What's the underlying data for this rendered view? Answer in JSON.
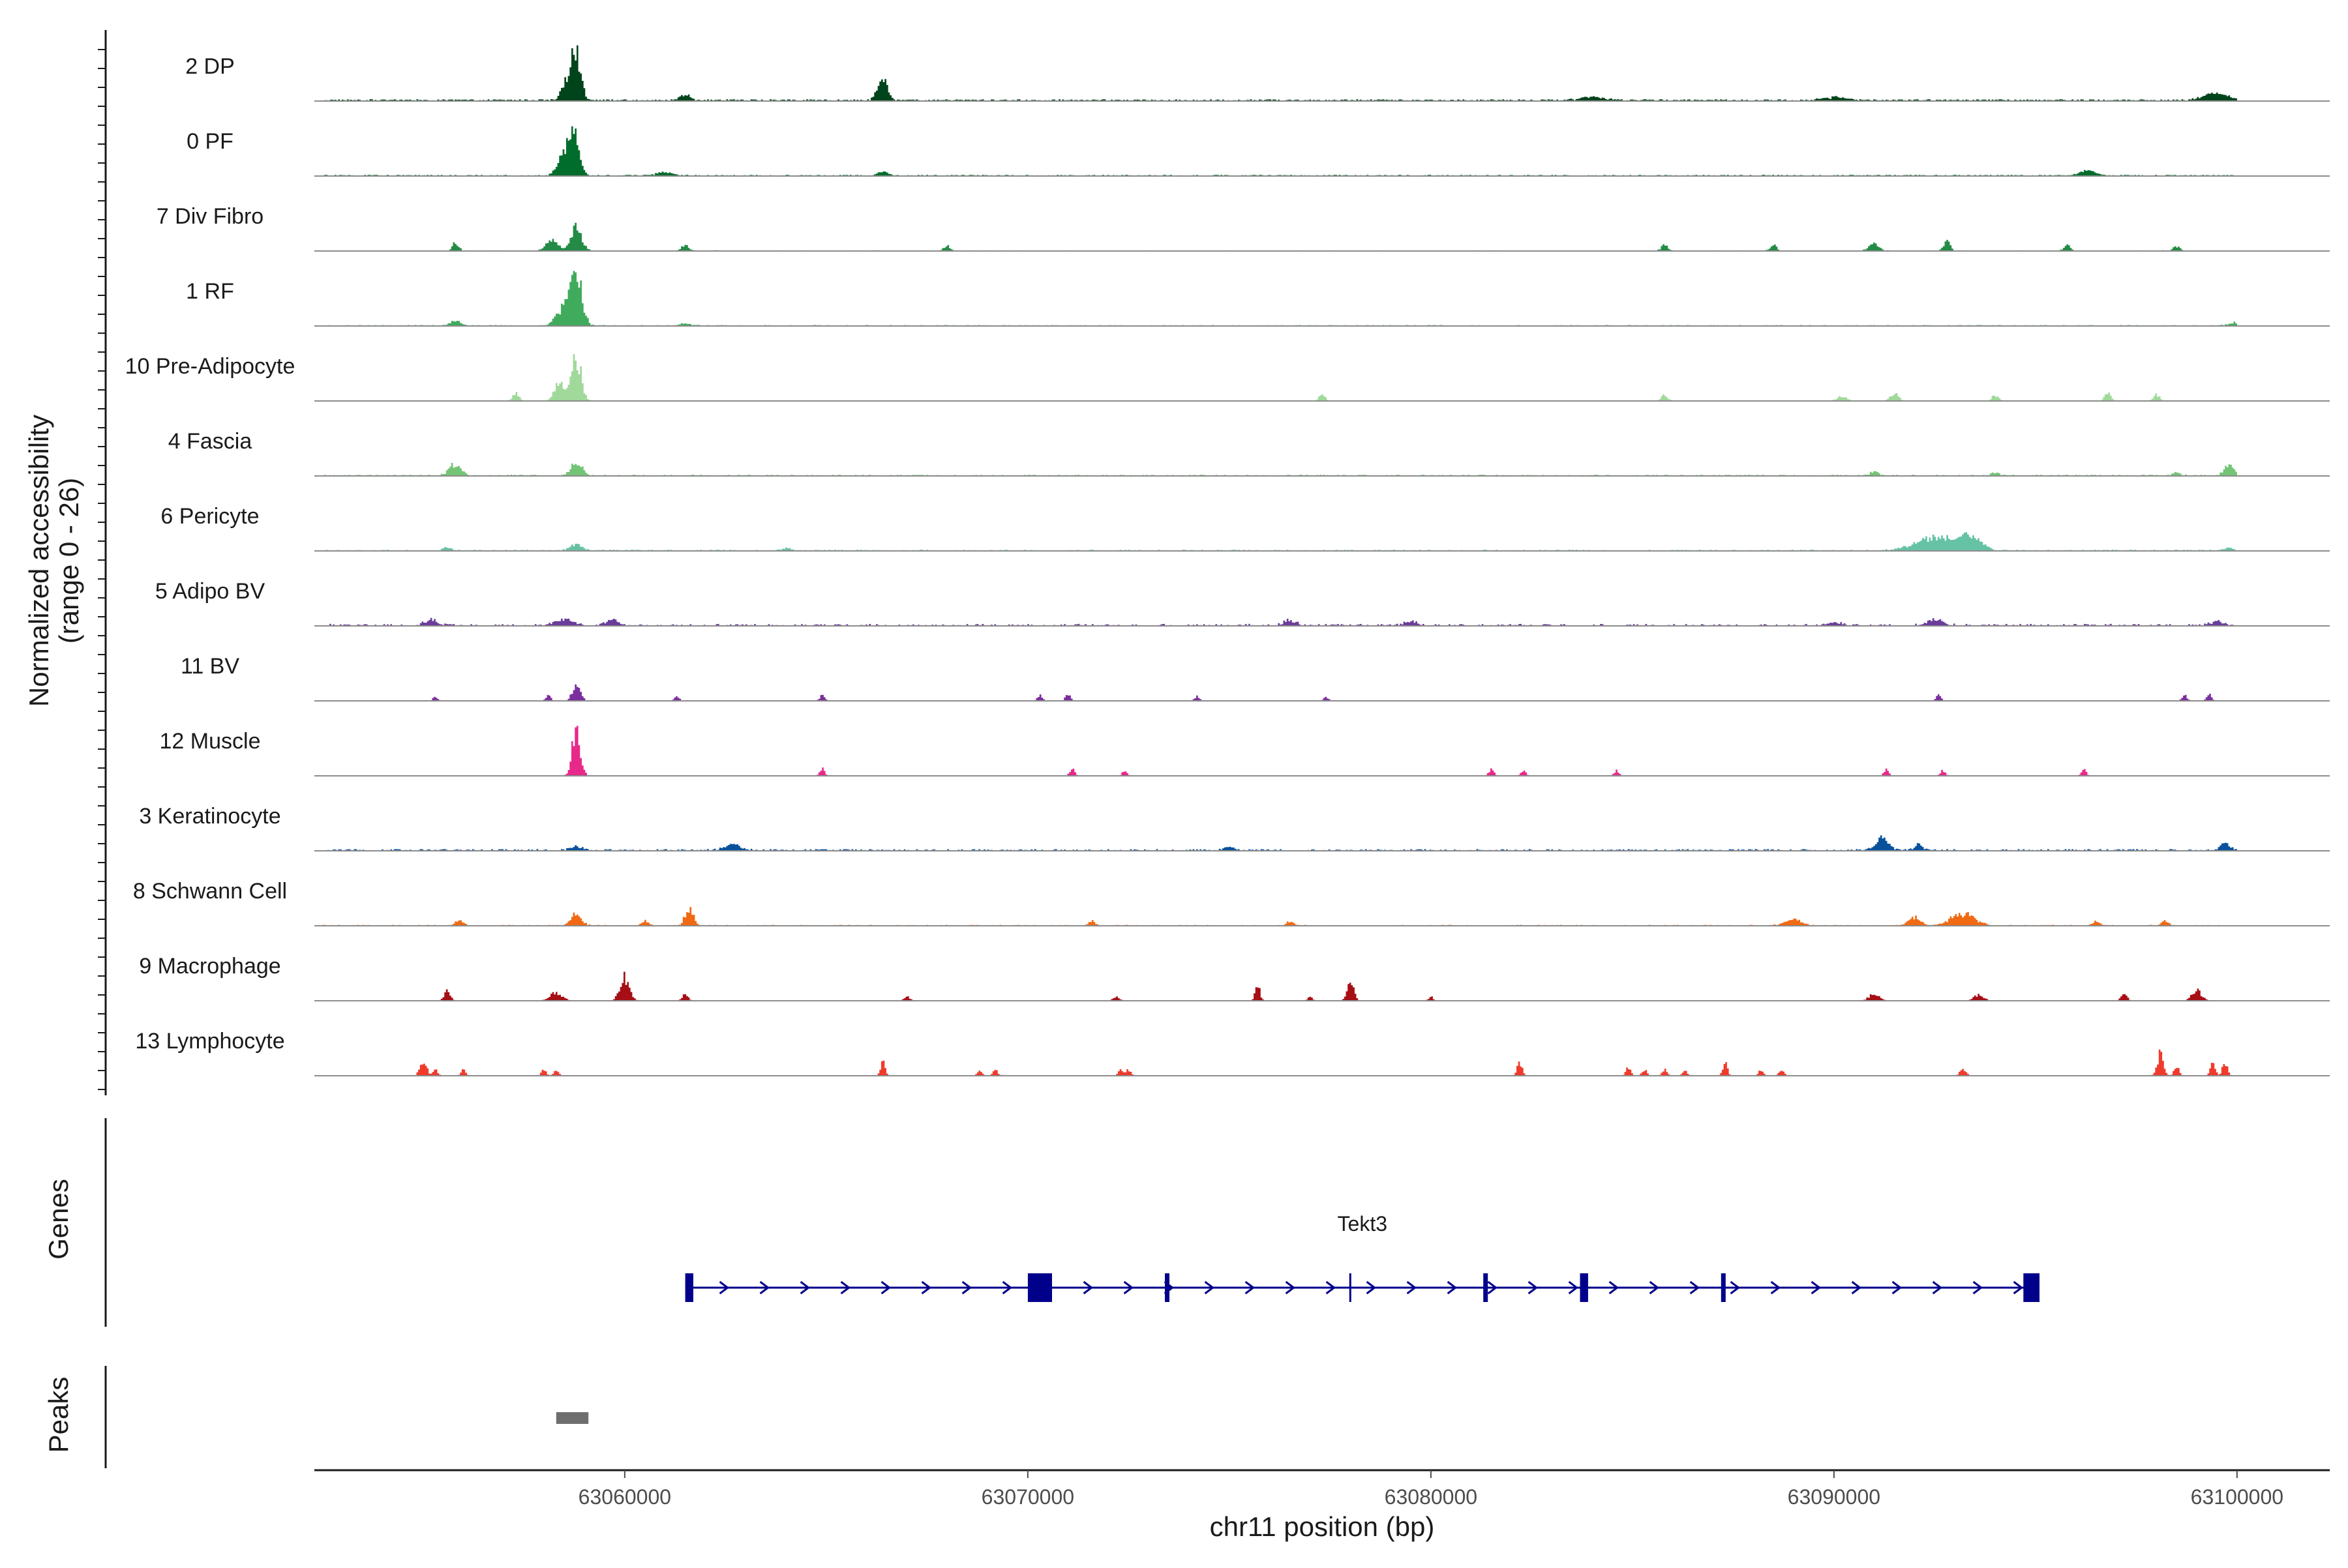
{
  "chart_data": {
    "type": "area",
    "y_axis_title_line1": "Normalized accessibility",
    "y_axis_title_line2": "(range 0 - 26)",
    "ylim": [
      0,
      26
    ],
    "x_axis_title": "chr11 position (bp)",
    "xlim": [
      63052300,
      63102300
    ],
    "x_ticks": [
      63060000,
      63070000,
      63080000,
      63090000,
      63100000
    ],
    "x_tick_labels": [
      "63060000",
      "63070000",
      "63080000",
      "63090000",
      "63100000"
    ],
    "region": [
      63052500,
      63100000
    ],
    "genes_panel_title": "Genes",
    "peaks_panel_title": "Peaks",
    "series": [
      {
        "name": "2 DP",
        "color": "#00441b",
        "baseline": 0.35,
        "density": 0.9,
        "peaks": [
          [
            63058800,
            20,
            120
          ],
          [
            63058600,
            9,
            150
          ],
          [
            63061500,
            3,
            120
          ],
          [
            63066400,
            10,
            120
          ],
          [
            63099500,
            3.5,
            300
          ],
          [
            63090000,
            1.5,
            300
          ],
          [
            63084000,
            1.5,
            300
          ]
        ]
      },
      {
        "name": "0 PF",
        "color": "#006d2c",
        "baseline": 0.25,
        "density": 0.8,
        "peaks": [
          [
            63058750,
            24,
            120
          ],
          [
            63058500,
            10,
            150
          ],
          [
            63066400,
            2,
            120
          ],
          [
            63096300,
            2.5,
            200
          ],
          [
            63061000,
            1.5,
            200
          ]
        ]
      },
      {
        "name": "7 Div Fibro",
        "color": "#238b45",
        "baseline": 0.15,
        "density": 0.35,
        "peaks": [
          [
            63058800,
            13,
            130
          ],
          [
            63058200,
            5,
            150
          ],
          [
            63055800,
            4,
            80
          ],
          [
            63061500,
            3,
            80
          ],
          [
            63068000,
            2.5,
            80
          ],
          [
            63085800,
            3,
            80
          ],
          [
            63091000,
            4,
            120
          ],
          [
            63092800,
            5,
            80
          ],
          [
            63095800,
            3,
            80
          ],
          [
            63098500,
            2.5,
            80
          ],
          [
            63088500,
            3,
            80
          ]
        ]
      },
      {
        "name": "1 RF",
        "color": "#41ab5d",
        "baseline": 0.2,
        "density": 0.6,
        "peaks": [
          [
            63058800,
            24,
            140
          ],
          [
            63058500,
            9,
            180
          ],
          [
            63055800,
            2,
            150
          ],
          [
            63061500,
            1.5,
            120
          ],
          [
            63100000,
            1.5,
            200
          ]
        ]
      },
      {
        "name": "10 Pre-Adipocyte",
        "color": "#a1d99b",
        "baseline": 0,
        "density": 0.25,
        "peaks": [
          [
            63058800,
            22,
            120
          ],
          [
            63058400,
            9,
            140
          ],
          [
            63057300,
            4,
            80
          ],
          [
            63077300,
            3,
            80
          ],
          [
            63085800,
            3,
            80
          ],
          [
            63091500,
            4,
            100
          ],
          [
            63096800,
            4,
            80
          ],
          [
            63090200,
            2.5,
            120
          ],
          [
            63094000,
            3,
            80
          ],
          [
            63098000,
            3,
            80
          ]
        ]
      },
      {
        "name": "4 Fascia",
        "color": "#74c476",
        "baseline": 0.25,
        "density": 0.6,
        "peaks": [
          [
            63058800,
            7,
            130
          ],
          [
            63055800,
            6,
            150
          ],
          [
            63099800,
            5,
            120
          ],
          [
            63091000,
            2,
            100
          ],
          [
            63094000,
            1.5,
            100
          ],
          [
            63098500,
            1.5,
            100
          ]
        ]
      },
      {
        "name": "6 Pericyte",
        "color": "#66c2a4",
        "baseline": 0.25,
        "density": 0.5,
        "peaks": [
          [
            63092600,
            7,
            500
          ],
          [
            63093400,
            6,
            250
          ],
          [
            63058800,
            3,
            150
          ],
          [
            63055600,
            2,
            100
          ],
          [
            63064000,
            1.5,
            100
          ],
          [
            63099800,
            1.5,
            100
          ]
        ]
      },
      {
        "name": "5 Adipo BV",
        "color": "#6a3d9a",
        "baseline": 0.4,
        "density": 0.4,
        "peaks": [
          [
            63055200,
            3,
            150
          ],
          [
            63058500,
            3,
            200
          ],
          [
            63059700,
            3,
            150
          ],
          [
            63076500,
            2.5,
            150
          ],
          [
            63079500,
            2.5,
            150
          ],
          [
            63092500,
            3,
            200
          ],
          [
            63090000,
            2,
            150
          ],
          [
            63099500,
            2,
            150
          ]
        ]
      },
      {
        "name": "11 BV",
        "color": "#7b2f9e",
        "baseline": 0,
        "density": 0.12,
        "peaks": [
          [
            63058800,
            8,
            100
          ],
          [
            63058100,
            3,
            60
          ],
          [
            63055300,
            2,
            60
          ],
          [
            63061300,
            2.5,
            60
          ],
          [
            63064900,
            3,
            60
          ],
          [
            63070300,
            3,
            60
          ],
          [
            63071000,
            3.5,
            60
          ],
          [
            63074200,
            2.5,
            60
          ],
          [
            63077400,
            2,
            60
          ],
          [
            63092600,
            3,
            60
          ],
          [
            63098700,
            3,
            60
          ],
          [
            63099300,
            3.5,
            60
          ]
        ]
      },
      {
        "name": "12 Muscle",
        "color": "#e7298a",
        "baseline": 0,
        "density": 0.05,
        "peaks": [
          [
            63058800,
            24,
            100
          ],
          [
            63064900,
            4,
            60
          ],
          [
            63071100,
            3.5,
            60
          ],
          [
            63072400,
            2.5,
            60
          ],
          [
            63081500,
            3.5,
            60
          ],
          [
            63082300,
            2.5,
            60
          ],
          [
            63084600,
            2.5,
            60
          ],
          [
            63091300,
            3.5,
            60
          ],
          [
            63092700,
            3,
            60
          ],
          [
            63096200,
            3,
            60
          ]
        ]
      },
      {
        "name": "3 Keratinocyte",
        "color": "#08519c",
        "baseline": 0.35,
        "density": 0.6,
        "peaks": [
          [
            63091200,
            6,
            150
          ],
          [
            63062700,
            3,
            200
          ],
          [
            63092100,
            3,
            100
          ],
          [
            63099700,
            4,
            120
          ],
          [
            63058800,
            2,
            150
          ],
          [
            63075000,
            1.5,
            150
          ]
        ]
      },
      {
        "name": "8 Schwann Cell",
        "color": "#f16913",
        "baseline": 0.2,
        "density": 0.45,
        "peaks": [
          [
            63058800,
            6,
            130
          ],
          [
            63061600,
            9,
            100
          ],
          [
            63093200,
            6,
            300
          ],
          [
            63092000,
            4,
            150
          ],
          [
            63089000,
            3,
            200
          ],
          [
            63055900,
            2.5,
            100
          ],
          [
            63096500,
            2,
            100
          ],
          [
            63098200,
            3,
            80
          ],
          [
            63060500,
            2,
            100
          ],
          [
            63076500,
            2,
            80
          ],
          [
            63071600,
            2,
            80
          ]
        ]
      },
      {
        "name": "9 Macrophage",
        "color": "#a50f15",
        "baseline": 0,
        "density": 0.3,
        "peaks": [
          [
            63060000,
            12,
            120
          ],
          [
            63058300,
            4,
            150
          ],
          [
            63055600,
            5,
            80
          ],
          [
            63078000,
            11,
            80
          ],
          [
            63075700,
            8,
            60
          ],
          [
            63061500,
            3,
            80
          ],
          [
            63067000,
            2,
            80
          ],
          [
            63072200,
            2,
            80
          ],
          [
            63091000,
            4,
            120
          ],
          [
            63093600,
            3,
            120
          ],
          [
            63099000,
            5,
            120
          ],
          [
            63097200,
            3,
            80
          ],
          [
            63077000,
            2,
            60
          ],
          [
            63080000,
            2,
            60
          ]
        ]
      },
      {
        "name": "13 Lymphocyte",
        "color": "#ef3b2c",
        "baseline": 0,
        "density": 0.06,
        "peaks": [
          [
            63055000,
            8,
            80
          ],
          [
            63055300,
            3,
            60
          ],
          [
            63056000,
            3,
            60
          ],
          [
            63058000,
            3,
            60
          ],
          [
            63058300,
            3,
            60
          ],
          [
            63066400,
            7,
            60
          ],
          [
            63068800,
            3,
            60
          ],
          [
            63069200,
            3,
            60
          ],
          [
            63072300,
            3,
            60
          ],
          [
            63072500,
            3,
            60
          ],
          [
            63082200,
            7,
            60
          ],
          [
            63084900,
            4,
            60
          ],
          [
            63085300,
            3,
            60
          ],
          [
            63085800,
            3,
            60
          ],
          [
            63086300,
            3,
            60
          ],
          [
            63087300,
            6,
            60
          ],
          [
            63088200,
            3,
            60
          ],
          [
            63088700,
            3,
            60
          ],
          [
            63093200,
            3,
            80
          ],
          [
            63098100,
            11,
            80
          ],
          [
            63098500,
            5,
            60
          ],
          [
            63099400,
            6,
            60
          ],
          [
            63099700,
            7,
            60
          ]
        ]
      }
    ],
    "genes": [
      {
        "name": "Tekt3",
        "start": 63061500,
        "end": 63095100,
        "strand": "+",
        "color": "#00008b",
        "exons": [
          [
            63061500,
            63061700
          ],
          [
            63070000,
            63070600
          ],
          [
            63073400,
            63073500
          ],
          [
            63081300,
            63081400
          ],
          [
            63083700,
            63083900
          ],
          [
            63087200,
            63087300
          ],
          [
            63094700,
            63095100
          ]
        ],
        "tick_marks": [
          63078000
        ]
      }
    ],
    "peaks": [
      {
        "start": 63058300,
        "end": 63059100,
        "color": "#6e6e6e"
      }
    ]
  }
}
